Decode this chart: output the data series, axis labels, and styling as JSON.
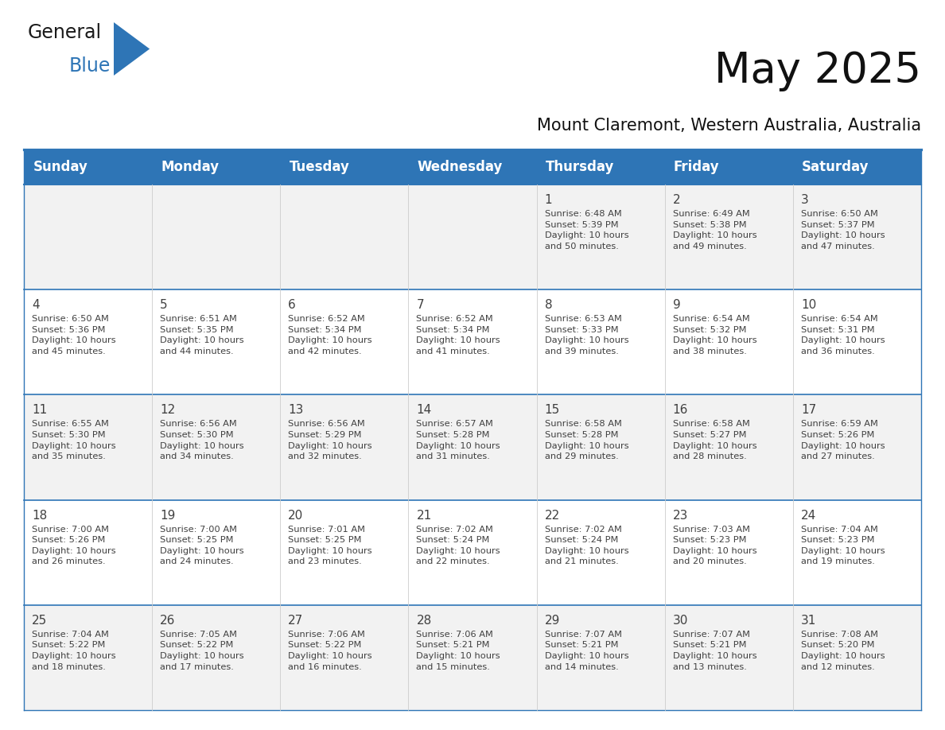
{
  "title": "May 2025",
  "subtitle": "Mount Claremont, Western Australia, Australia",
  "header_color": "#2E75B6",
  "header_text_color": "#FFFFFF",
  "cell_bg_white": "#FFFFFF",
  "cell_bg_gray": "#F2F2F2",
  "border_color": "#2E75B6",
  "row_line_color": "#4A90C4",
  "text_color": "#404040",
  "logo_black": "#1A1A1A",
  "logo_blue": "#2E75B6",
  "day_headers": [
    "Sunday",
    "Monday",
    "Tuesday",
    "Wednesday",
    "Thursday",
    "Friday",
    "Saturday"
  ],
  "title_fontsize": 38,
  "subtitle_fontsize": 15,
  "header_fontsize": 12,
  "day_num_fontsize": 11,
  "cell_fontsize": 8.2,
  "days": [
    {
      "day": 1,
      "col": 4,
      "row": 0,
      "sunrise": "6:48 AM",
      "sunset": "5:39 PM",
      "daylight_hours": 10,
      "daylight_minutes": 50
    },
    {
      "day": 2,
      "col": 5,
      "row": 0,
      "sunrise": "6:49 AM",
      "sunset": "5:38 PM",
      "daylight_hours": 10,
      "daylight_minutes": 49
    },
    {
      "day": 3,
      "col": 6,
      "row": 0,
      "sunrise": "6:50 AM",
      "sunset": "5:37 PM",
      "daylight_hours": 10,
      "daylight_minutes": 47
    },
    {
      "day": 4,
      "col": 0,
      "row": 1,
      "sunrise": "6:50 AM",
      "sunset": "5:36 PM",
      "daylight_hours": 10,
      "daylight_minutes": 45
    },
    {
      "day": 5,
      "col": 1,
      "row": 1,
      "sunrise": "6:51 AM",
      "sunset": "5:35 PM",
      "daylight_hours": 10,
      "daylight_minutes": 44
    },
    {
      "day": 6,
      "col": 2,
      "row": 1,
      "sunrise": "6:52 AM",
      "sunset": "5:34 PM",
      "daylight_hours": 10,
      "daylight_minutes": 42
    },
    {
      "day": 7,
      "col": 3,
      "row": 1,
      "sunrise": "6:52 AM",
      "sunset": "5:34 PM",
      "daylight_hours": 10,
      "daylight_minutes": 41
    },
    {
      "day": 8,
      "col": 4,
      "row": 1,
      "sunrise": "6:53 AM",
      "sunset": "5:33 PM",
      "daylight_hours": 10,
      "daylight_minutes": 39
    },
    {
      "day": 9,
      "col": 5,
      "row": 1,
      "sunrise": "6:54 AM",
      "sunset": "5:32 PM",
      "daylight_hours": 10,
      "daylight_minutes": 38
    },
    {
      "day": 10,
      "col": 6,
      "row": 1,
      "sunrise": "6:54 AM",
      "sunset": "5:31 PM",
      "daylight_hours": 10,
      "daylight_minutes": 36
    },
    {
      "day": 11,
      "col": 0,
      "row": 2,
      "sunrise": "6:55 AM",
      "sunset": "5:30 PM",
      "daylight_hours": 10,
      "daylight_minutes": 35
    },
    {
      "day": 12,
      "col": 1,
      "row": 2,
      "sunrise": "6:56 AM",
      "sunset": "5:30 PM",
      "daylight_hours": 10,
      "daylight_minutes": 34
    },
    {
      "day": 13,
      "col": 2,
      "row": 2,
      "sunrise": "6:56 AM",
      "sunset": "5:29 PM",
      "daylight_hours": 10,
      "daylight_minutes": 32
    },
    {
      "day": 14,
      "col": 3,
      "row": 2,
      "sunrise": "6:57 AM",
      "sunset": "5:28 PM",
      "daylight_hours": 10,
      "daylight_minutes": 31
    },
    {
      "day": 15,
      "col": 4,
      "row": 2,
      "sunrise": "6:58 AM",
      "sunset": "5:28 PM",
      "daylight_hours": 10,
      "daylight_minutes": 29
    },
    {
      "day": 16,
      "col": 5,
      "row": 2,
      "sunrise": "6:58 AM",
      "sunset": "5:27 PM",
      "daylight_hours": 10,
      "daylight_minutes": 28
    },
    {
      "day": 17,
      "col": 6,
      "row": 2,
      "sunrise": "6:59 AM",
      "sunset": "5:26 PM",
      "daylight_hours": 10,
      "daylight_minutes": 27
    },
    {
      "day": 18,
      "col": 0,
      "row": 3,
      "sunrise": "7:00 AM",
      "sunset": "5:26 PM",
      "daylight_hours": 10,
      "daylight_minutes": 26
    },
    {
      "day": 19,
      "col": 1,
      "row": 3,
      "sunrise": "7:00 AM",
      "sunset": "5:25 PM",
      "daylight_hours": 10,
      "daylight_minutes": 24
    },
    {
      "day": 20,
      "col": 2,
      "row": 3,
      "sunrise": "7:01 AM",
      "sunset": "5:25 PM",
      "daylight_hours": 10,
      "daylight_minutes": 23
    },
    {
      "day": 21,
      "col": 3,
      "row": 3,
      "sunrise": "7:02 AM",
      "sunset": "5:24 PM",
      "daylight_hours": 10,
      "daylight_minutes": 22
    },
    {
      "day": 22,
      "col": 4,
      "row": 3,
      "sunrise": "7:02 AM",
      "sunset": "5:24 PM",
      "daylight_hours": 10,
      "daylight_minutes": 21
    },
    {
      "day": 23,
      "col": 5,
      "row": 3,
      "sunrise": "7:03 AM",
      "sunset": "5:23 PM",
      "daylight_hours": 10,
      "daylight_minutes": 20
    },
    {
      "day": 24,
      "col": 6,
      "row": 3,
      "sunrise": "7:04 AM",
      "sunset": "5:23 PM",
      "daylight_hours": 10,
      "daylight_minutes": 19
    },
    {
      "day": 25,
      "col": 0,
      "row": 4,
      "sunrise": "7:04 AM",
      "sunset": "5:22 PM",
      "daylight_hours": 10,
      "daylight_minutes": 18
    },
    {
      "day": 26,
      "col": 1,
      "row": 4,
      "sunrise": "7:05 AM",
      "sunset": "5:22 PM",
      "daylight_hours": 10,
      "daylight_minutes": 17
    },
    {
      "day": 27,
      "col": 2,
      "row": 4,
      "sunrise": "7:06 AM",
      "sunset": "5:22 PM",
      "daylight_hours": 10,
      "daylight_minutes": 16
    },
    {
      "day": 28,
      "col": 3,
      "row": 4,
      "sunrise": "7:06 AM",
      "sunset": "5:21 PM",
      "daylight_hours": 10,
      "daylight_minutes": 15
    },
    {
      "day": 29,
      "col": 4,
      "row": 4,
      "sunrise": "7:07 AM",
      "sunset": "5:21 PM",
      "daylight_hours": 10,
      "daylight_minutes": 14
    },
    {
      "day": 30,
      "col": 5,
      "row": 4,
      "sunrise": "7:07 AM",
      "sunset": "5:21 PM",
      "daylight_hours": 10,
      "daylight_minutes": 13
    },
    {
      "day": 31,
      "col": 6,
      "row": 4,
      "sunrise": "7:08 AM",
      "sunset": "5:20 PM",
      "daylight_hours": 10,
      "daylight_minutes": 12
    }
  ]
}
